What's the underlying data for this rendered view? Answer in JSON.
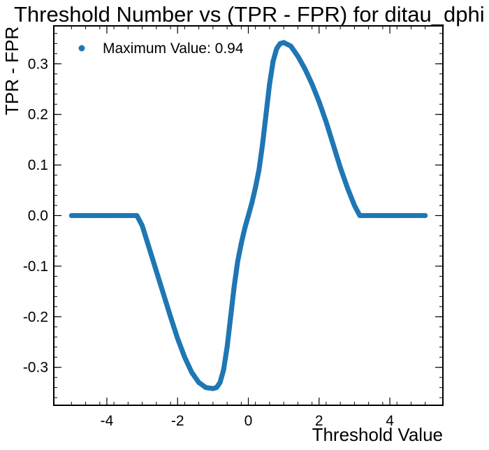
{
  "chart_data": {
    "type": "scatter",
    "title": "Threshold Number vs (TPR - FPR) for ditau_dphi",
    "xlabel": "Threshold Value",
    "ylabel": "TPR - FPR",
    "xlim": [
      -5.5,
      5.5
    ],
    "ylim": [
      -0.375,
      0.375
    ],
    "x_ticks": [
      -4,
      -2,
      0,
      2,
      4
    ],
    "y_ticks": [
      -0.3,
      -0.2,
      -0.1,
      0.0,
      0.1,
      0.2,
      0.3
    ],
    "x_tick_labels": [
      "-4",
      "-2",
      "0",
      "2",
      "4"
    ],
    "y_tick_labels": [
      "-0.3",
      "-0.2",
      "-0.1",
      "0.0",
      "0.1",
      "0.2",
      "0.3"
    ],
    "grid": false,
    "legend": {
      "position": "top-left",
      "entries": [
        "Maximum Value: 0.94"
      ]
    },
    "series": [
      {
        "name": "Maximum Value: 0.94",
        "color": "#1f77b4",
        "points": [
          [
            -5.0,
            0.0
          ],
          [
            -4.5,
            0.0
          ],
          [
            -4.0,
            0.0
          ],
          [
            -3.5,
            0.0
          ],
          [
            -3.15,
            0.0
          ],
          [
            -3.0,
            -0.02
          ],
          [
            -2.8,
            -0.065
          ],
          [
            -2.6,
            -0.11
          ],
          [
            -2.4,
            -0.155
          ],
          [
            -2.2,
            -0.2
          ],
          [
            -2.0,
            -0.243
          ],
          [
            -1.8,
            -0.28
          ],
          [
            -1.6,
            -0.31
          ],
          [
            -1.4,
            -0.33
          ],
          [
            -1.2,
            -0.34
          ],
          [
            -1.0,
            -0.342
          ],
          [
            -0.9,
            -0.34
          ],
          [
            -0.8,
            -0.33
          ],
          [
            -0.7,
            -0.305
          ],
          [
            -0.6,
            -0.26
          ],
          [
            -0.5,
            -0.2
          ],
          [
            -0.4,
            -0.14
          ],
          [
            -0.3,
            -0.09
          ],
          [
            -0.2,
            -0.055
          ],
          [
            -0.1,
            -0.025
          ],
          [
            0.0,
            0.0
          ],
          [
            0.1,
            0.025
          ],
          [
            0.2,
            0.055
          ],
          [
            0.3,
            0.09
          ],
          [
            0.4,
            0.14
          ],
          [
            0.5,
            0.2
          ],
          [
            0.6,
            0.26
          ],
          [
            0.7,
            0.305
          ],
          [
            0.8,
            0.33
          ],
          [
            0.9,
            0.34
          ],
          [
            1.0,
            0.342
          ],
          [
            1.2,
            0.335
          ],
          [
            1.4,
            0.315
          ],
          [
            1.6,
            0.29
          ],
          [
            1.8,
            0.26
          ],
          [
            2.0,
            0.225
          ],
          [
            2.2,
            0.185
          ],
          [
            2.4,
            0.14
          ],
          [
            2.6,
            0.095
          ],
          [
            2.8,
            0.055
          ],
          [
            3.0,
            0.02
          ],
          [
            3.15,
            0.0
          ],
          [
            3.5,
            0.0
          ],
          [
            4.0,
            0.0
          ],
          [
            4.5,
            0.0
          ],
          [
            5.0,
            0.0
          ]
        ]
      }
    ]
  }
}
